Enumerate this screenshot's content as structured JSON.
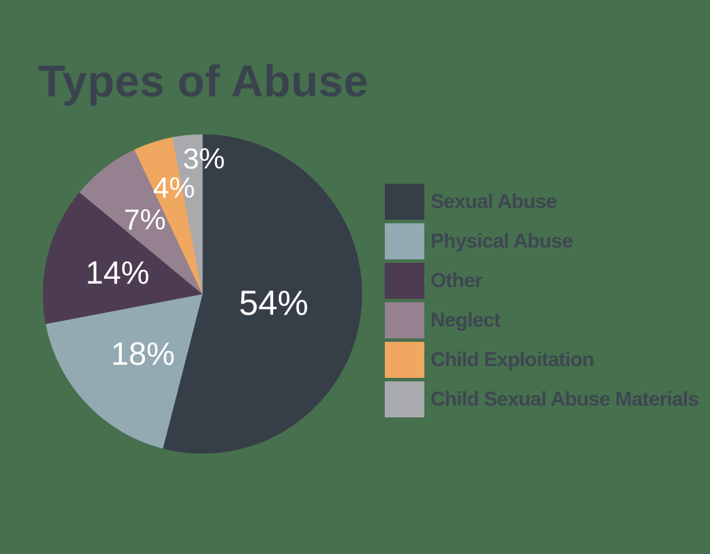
{
  "background_color": "#47704E",
  "title": "Types of Abuse",
  "title_color": "#39434E",
  "chart_data": {
    "type": "pie",
    "title": "Types of Abuse",
    "direction": "clockwise",
    "start_angle_deg": 0,
    "legend_position": "right",
    "value_label_color": "#FFFFFF",
    "legend_text_color": "#3D4752",
    "slices": [
      {
        "label": "Sexual Abuse",
        "value": 54,
        "display": "54%",
        "color": "#363E48"
      },
      {
        "label": "Physical Abuse",
        "value": 18,
        "display": "18%",
        "color": "#93AAB2"
      },
      {
        "label": "Other",
        "value": 14,
        "display": "14%",
        "color": "#4D3C51"
      },
      {
        "label": "Neglect",
        "value": 7,
        "display": "7%",
        "color": "#95818F"
      },
      {
        "label": "Child Exploitation",
        "value": 4,
        "display": "4%",
        "color": "#F0A75F"
      },
      {
        "label": "Child Sexual Abuse Materials",
        "value": 3,
        "display": "3%",
        "color": "#A8AAAE"
      }
    ]
  }
}
